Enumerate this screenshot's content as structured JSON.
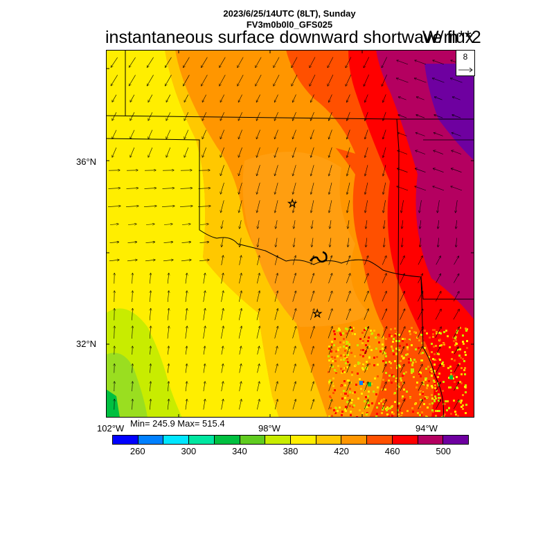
{
  "header": {
    "datetime_line": "2023/6/25/14UTC (8LT), Sunday",
    "model_line": "FV3m0b0l0_GFS025",
    "title": "instantaneous surface downward shortwave flux",
    "units": "W/m**2"
  },
  "map": {
    "lat_labels": [
      "36°N",
      "32°N"
    ],
    "lon_labels": [
      "102°W",
      "98°W",
      "94°W"
    ],
    "stats": "Min= 245.9 Max= 515.4",
    "wind_reference_value": "8",
    "markers": [
      "star",
      "star"
    ]
  },
  "colorbar": {
    "colors": [
      "#0000ff",
      "#0080ff",
      "#00e6ff",
      "#00e6a0",
      "#00c040",
      "#60cc20",
      "#c8ec00",
      "#ffee00",
      "#ffc800",
      "#ff9600",
      "#ff5000",
      "#ff0000",
      "#b40060",
      "#6e00a0"
    ],
    "labels": [
      "260",
      "300",
      "340",
      "380",
      "420",
      "460",
      "500"
    ]
  }
}
